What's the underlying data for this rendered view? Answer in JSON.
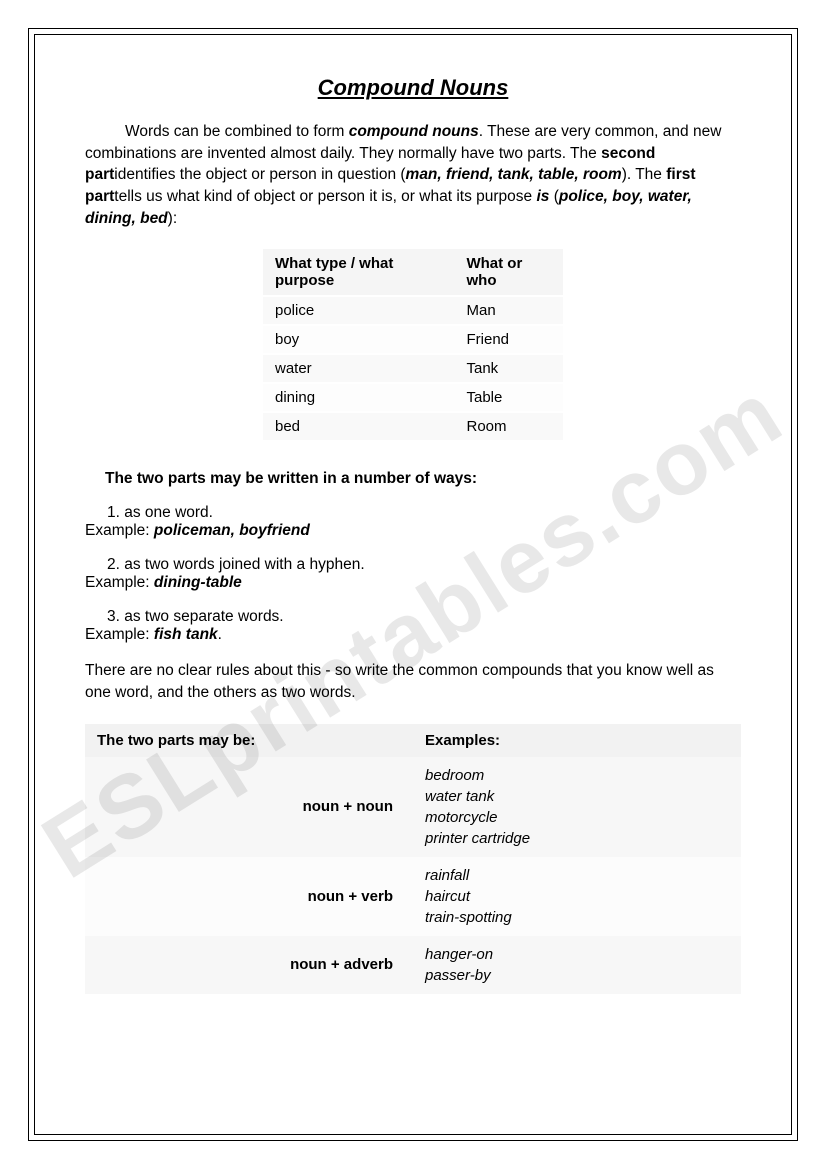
{
  "title": "Compound Nouns",
  "intro": {
    "t1": "Words can be combined to form ",
    "em1": "compound nouns",
    "t2": ". These are very common, and new combinations are invented almost daily. They normally have two parts. The ",
    "b1": "second part",
    "t3": "identifies the object or person in question (",
    "em2": "man, friend, tank, table, room",
    "t4": "). The ",
    "b2": "first part",
    "t5": "tells us what kind of object or person it is, or what its purpose ",
    "em3a": "is",
    "t5b": " (",
    "em3": "police, boy, water, dining, bed",
    "t6": "):"
  },
  "table1": {
    "h1": "What type / what purpose",
    "h2": "What or who",
    "rows": [
      {
        "a": "police",
        "b": "Man"
      },
      {
        "a": "boy",
        "b": "Friend"
      },
      {
        "a": "water",
        "b": "Tank"
      },
      {
        "a": "dining",
        "b": "Table"
      },
      {
        "a": "bed",
        "b": "Room"
      }
    ]
  },
  "subhead": "The two parts may be written in a number of ways:",
  "ways": [
    {
      "num": "1. as one word.",
      "exlabel": "Example: ",
      "ex": "policeman, boyfriend"
    },
    {
      "num": "2. as two words joined with a hyphen.",
      "exlabel": "Example: ",
      "ex": "dining-table"
    },
    {
      "num": "3. as two separate words.",
      "exlabel": "Example: ",
      "ex": "fish tank",
      "trail": "."
    }
  ],
  "closing": "There are no clear rules about this - so write the common compounds that you know well as one word, and the others as two words.",
  "table2": {
    "h1": "The two parts may be:",
    "h2": "Examples:",
    "rows": [
      {
        "pattern": "noun + noun",
        "examples": "bedroom\nwater tank\nmotorcycle\nprinter cartridge"
      },
      {
        "pattern": "noun + verb",
        "examples": "rainfall\nhaircut\ntrain-spotting"
      },
      {
        "pattern": "noun + adverb",
        "examples": "hanger-on\npasser-by"
      }
    ]
  },
  "watermark": "ESLprintables.com"
}
